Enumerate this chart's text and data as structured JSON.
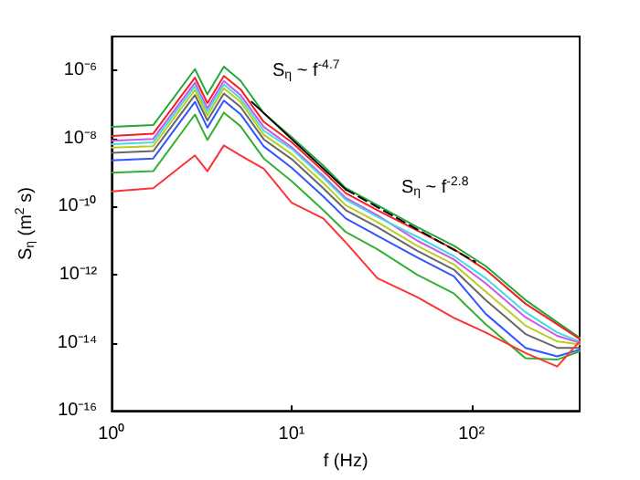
{
  "chart_data": {
    "type": "line",
    "xlabel": "f (Hz)",
    "ylabel": "S$_{η}$ (m$^{2}$ s)",
    "x": [
      1,
      1.7,
      2.9,
      3.4,
      4.2,
      5.2,
      7,
      10,
      15,
      20,
      30,
      50,
      80,
      120,
      200,
      300,
      400
    ],
    "series": [
      {
        "color": "#22a83a",
        "values": [
          2.2e-08,
          2.5e-08,
          1.1e-06,
          2e-07,
          1.3e-06,
          5e-07,
          5.6e-08,
          1.1e-08,
          1.6e-09,
          3.5e-10,
          1.1e-10,
          2.5e-11,
          7.1e-12,
          1.8e-12,
          1.8e-13,
          4e-14,
          1.4e-14
        ]
      },
      {
        "color": "#ee2222",
        "values": [
          1.2e-08,
          1.4e-08,
          6.2e-07,
          1.1e-07,
          6.9e-07,
          2.8e-07,
          3.1e-08,
          7.9e-09,
          1.1e-09,
          2.5e-10,
          7.9e-11,
          2e-11,
          5.6e-12,
          1.4e-12,
          1.4e-13,
          3.5e-14,
          1.3e-14
        ]
      },
      {
        "color": "#cc55ee",
        "values": [
          8.7e-09,
          9.8e-09,
          4.4e-07,
          7.8e-08,
          4.9e-07,
          1.9e-07,
          2.2e-08,
          5.6e-09,
          7.9e-10,
          1.8e-10,
          5.6e-11,
          1e-11,
          2.8e-12,
          5.6e-13,
          5.6e-14,
          1.6e-14,
          1e-14
        ]
      },
      {
        "color": "#44dddd",
        "values": [
          6.9e-09,
          7.8e-09,
          3.5e-07,
          6.2e-08,
          3.9e-07,
          1.5e-07,
          1.7e-08,
          5e-09,
          7.1e-10,
          1.6e-10,
          5e-11,
          1.3e-11,
          3.5e-12,
          7.9e-13,
          7.9e-14,
          2e-14,
          1.1e-14
        ]
      },
      {
        "color": "#bbcc22",
        "values": [
          5.4e-09,
          6e-09,
          2.7e-07,
          4.8e-08,
          3e-07,
          1.2e-07,
          1.3e-08,
          3.5e-09,
          5e-10,
          1.1e-10,
          3.5e-11,
          7.1e-12,
          2e-12,
          3.2e-13,
          3.2e-14,
          1.1e-14,
          8.9e-15
        ]
      },
      {
        "color": "#666666",
        "values": [
          3.8e-09,
          4.3e-09,
          1.9e-07,
          3.4e-08,
          2.1e-07,
          8.5e-08,
          9.5e-09,
          2.5e-09,
          3.5e-10,
          7.9e-11,
          2.5e-11,
          5e-12,
          1.4e-12,
          1.8e-13,
          1.8e-14,
          7.1e-15,
          7.1e-15
        ]
      },
      {
        "color": "#3355ff",
        "values": [
          2.3e-09,
          2.6e-09,
          1.2e-07,
          2.1e-08,
          1.3e-07,
          5.2e-08,
          5.9e-09,
          1.4e-09,
          2e-10,
          4.5e-11,
          1.4e-11,
          3.2e-12,
          8.9e-13,
          7.1e-14,
          7.1e-15,
          4e-15,
          6.3e-15
        ]
      },
      {
        "color": "#33b033",
        "values": [
          1e-09,
          1.1e-09,
          5.1e-08,
          9.1e-09,
          5.8e-08,
          2.3e-08,
          2.6e-09,
          5.6e-10,
          7.9e-11,
          1.8e-11,
          5.6e-12,
          1e-12,
          2.8e-13,
          3.5e-14,
          3.5e-15,
          3.2e-15,
          5.6e-15
        ]
      },
      {
        "color": "#ff3333",
        "values": [
          2.8e-10,
          3.5e-10,
          3.2e-09,
          1.1e-09,
          6.3e-09,
          3.2e-09,
          1.3e-09,
          1.3e-10,
          4.5e-11,
          8.9e-12,
          7.9e-13,
          2.2e-13,
          5.4e-14,
          2e-14,
          5e-15,
          2e-15,
          1.1e-14
        ]
      },
      {
        "type": "line",
        "color": "#000000",
        "line_style": "solid",
        "x": [
          6,
          20
        ],
        "values": [
          1.2e-07,
          3.2e-10
        ]
      },
      {
        "type": "line",
        "color": "#000000",
        "line_style": "dashed",
        "x": [
          20,
          105
        ],
        "values": [
          3.2e-10,
          2.4e-12
        ]
      }
    ],
    "annotations": [
      "S$_{η}$ ~ f$^{-4.7}$",
      "S$_{η}$ ~ f$^{-2.8}$"
    ],
    "log": "xy",
    "xlim": [
      1,
      400
    ],
    "ylim": [
      1e-16,
      1e-05
    ],
    "xticks": [
      {
        "value": 1,
        "label": "10⁰"
      },
      {
        "value": 10,
        "label": "10¹"
      },
      {
        "value": 100,
        "label": "10²"
      }
    ],
    "yticks": [
      {
        "value": 1e-16,
        "label": "10⁻¹⁶"
      },
      {
        "value": 1e-14,
        "label": "10⁻¹⁴"
      },
      {
        "value": 1e-12,
        "label": "10⁻¹²"
      },
      {
        "value": 1e-10,
        "label": "10⁻¹⁰"
      },
      {
        "value": 1e-08,
        "label": "10⁻⁸"
      },
      {
        "value": 1e-06,
        "label": "10⁻⁶"
      }
    ],
    "marker": "none",
    "line_style": "solid"
  }
}
